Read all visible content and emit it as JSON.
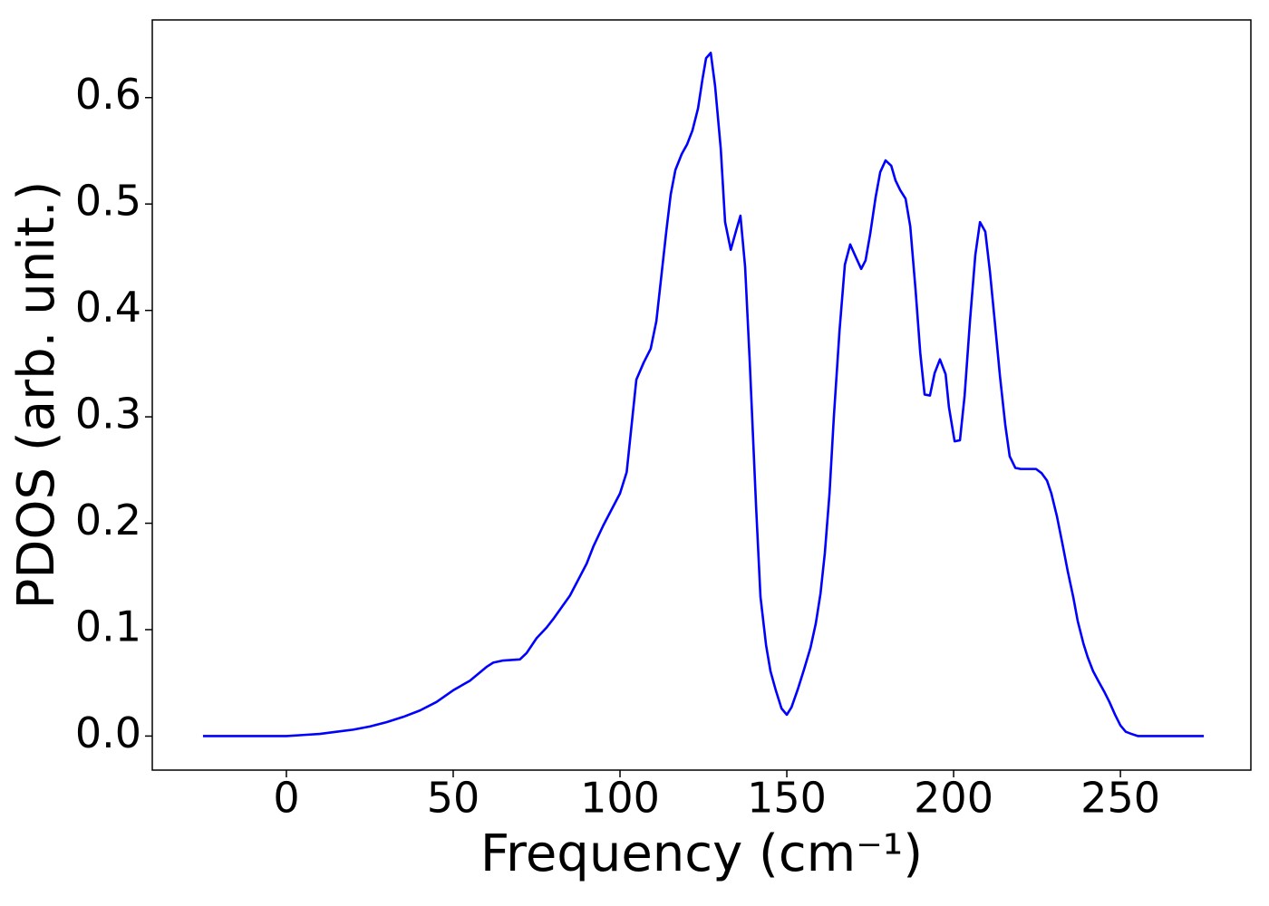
{
  "chart_data": {
    "type": "line",
    "xlabel": "Frequency (cm⁻¹)",
    "ylabel": "PDOS (arb. unit.)",
    "color": "#0000ff",
    "x": [
      -25,
      0,
      5,
      10,
      15,
      20,
      25,
      30,
      35,
      40,
      45,
      50,
      55,
      60,
      62,
      65,
      70,
      72,
      75,
      78,
      80,
      85,
      90,
      92,
      95,
      100,
      102,
      104.9,
      107.1,
      109.2,
      110.9,
      113.9,
      115.2,
      116.6,
      118.5,
      120.1,
      121.7,
      123.4,
      124.7,
      125.8,
      127.2,
      128.5,
      130.2,
      131.5,
      133.2,
      134.8,
      136.1,
      137.5,
      138.9,
      140.8,
      142.1,
      143.8,
      145.1,
      146.7,
      148.4,
      150.0,
      151.4,
      153.3,
      155.2,
      157.1,
      158.7,
      160.1,
      161.4,
      162.8,
      164.1,
      165.8,
      167.4,
      169.0,
      170.7,
      172.3,
      173.6,
      175.0,
      176.6,
      178.0,
      179.6,
      181.3,
      182.6,
      184.0,
      185.6,
      187.0,
      188.6,
      190.0,
      191.3,
      192.9,
      194.3,
      195.9,
      197.6,
      198.6,
      200.3,
      201.9,
      203.3,
      204.9,
      206.5,
      207.9,
      209.5,
      210.9,
      212.2,
      213.9,
      215.5,
      216.8,
      218.5,
      220.1,
      222.6,
      224.7,
      226.4,
      228.0,
      229.3,
      231.0,
      232.6,
      234.2,
      235.9,
      237.2,
      238.9,
      240.2,
      241.8,
      243.5,
      245.1,
      246.7,
      248.4,
      250.0,
      251.6,
      253.3,
      255.2,
      275
    ],
    "values": [
      0,
      0,
      0.001,
      0.002,
      0.004,
      0.006,
      0.009,
      0.013,
      0.018,
      0.024,
      0.032,
      0.043,
      0.052,
      0.065,
      0.069,
      0.071,
      0.072,
      0.078,
      0.092,
      0.102,
      0.11,
      0.132,
      0.162,
      0.178,
      0.198,
      0.228,
      0.248,
      0.335,
      0.351,
      0.364,
      0.39,
      0.475,
      0.509,
      0.532,
      0.547,
      0.556,
      0.569,
      0.59,
      0.617,
      0.637,
      0.642,
      0.611,
      0.552,
      0.483,
      0.457,
      0.475,
      0.489,
      0.441,
      0.351,
      0.215,
      0.131,
      0.085,
      0.061,
      0.043,
      0.026,
      0.02,
      0.027,
      0.044,
      0.063,
      0.083,
      0.106,
      0.134,
      0.172,
      0.228,
      0.3,
      0.381,
      0.443,
      0.462,
      0.45,
      0.439,
      0.447,
      0.472,
      0.506,
      0.53,
      0.541,
      0.536,
      0.522,
      0.513,
      0.505,
      0.479,
      0.419,
      0.36,
      0.321,
      0.32,
      0.341,
      0.354,
      0.34,
      0.309,
      0.277,
      0.278,
      0.32,
      0.39,
      0.452,
      0.483,
      0.474,
      0.436,
      0.394,
      0.338,
      0.292,
      0.263,
      0.252,
      0.251,
      0.251,
      0.251,
      0.247,
      0.24,
      0.228,
      0.206,
      0.181,
      0.155,
      0.13,
      0.108,
      0.087,
      0.074,
      0.061,
      0.051,
      0.042,
      0.032,
      0.02,
      0.01,
      0.004,
      0.002,
      0,
      0
    ],
    "xlim": [
      -40.2,
      289.1
    ],
    "xticks": [
      0,
      50,
      100,
      150,
      200,
      250
    ],
    "ylim": [
      -0.032,
      0.673
    ],
    "yticks": [
      {
        "value": 0,
        "label": "0.0"
      },
      0.1,
      0.2,
      0.3,
      0.4,
      0.5,
      0.6
    ]
  }
}
